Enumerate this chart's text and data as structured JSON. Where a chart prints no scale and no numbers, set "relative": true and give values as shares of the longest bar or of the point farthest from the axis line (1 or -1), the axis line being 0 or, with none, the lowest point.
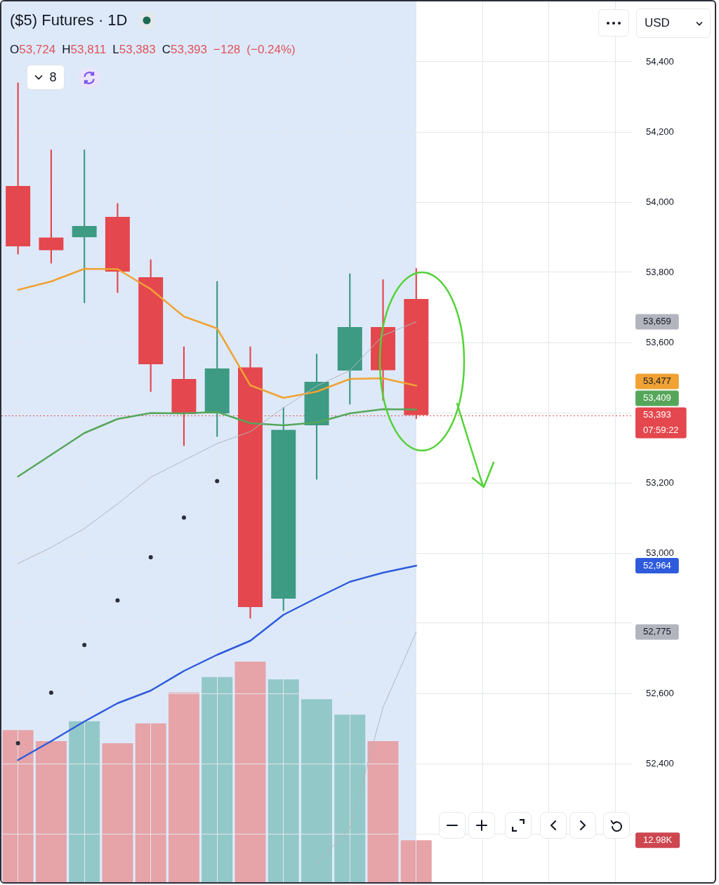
{
  "chart_data": [
    {
      "type": "candlestick",
      "title": "($5) Futures · 1D",
      "subtitle": "O53,724 H53,811 L53,383 C53,393 −128 (−0.24%)",
      "categories": [
        null,
        null,
        null,
        null,
        null,
        null,
        null,
        null,
        null,
        null,
        null,
        null,
        null,
        null,
        null,
        null,
        null,
        null,
        null
      ],
      "ohlc": [
        [
          54046,
          54340,
          53852,
          53874
        ],
        [
          53899,
          54149,
          53826,
          53863
        ],
        [
          53900,
          54149,
          53713,
          53932
        ],
        [
          53958,
          53996,
          53742,
          53802
        ],
        [
          53786,
          53836,
          53460,
          53538
        ],
        [
          53496,
          53588,
          53306,
          53396
        ],
        [
          53398,
          53774,
          53332,
          53526
        ],
        [
          53529,
          53588,
          52814,
          52846
        ],
        [
          52870,
          53415,
          52836,
          53351
        ],
        [
          53364,
          53567,
          53210,
          53488
        ],
        [
          53520,
          53796,
          53424,
          53644
        ],
        [
          53644,
          53779,
          53435,
          53521
        ],
        [
          53724,
          53811,
          53383,
          53393
        ],
        null,
        null,
        null,
        null,
        null,
        null
      ],
      "colors": [
        "#e4474d",
        "#e4474d",
        "#3d9a83",
        "#e4474d",
        "#e4474d",
        "#e4474d",
        "#3d9a83",
        "#e4474d",
        "#3d9a83",
        "#3d9a83",
        "#3d9a83",
        "#e4474d",
        "#e4474d",
        null,
        null,
        null,
        null,
        null,
        null
      ],
      "series": [
        {
          "type": "line",
          "color": "#f0a234",
          "values": [
            53750,
            53774,
            53810,
            53809,
            53752,
            53674,
            53640,
            53478,
            53442,
            53460,
            53496,
            53498,
            53477,
            null,
            null,
            null,
            null,
            null,
            null
          ]
        },
        {
          "type": "line",
          "color": "#56a65a",
          "values": [
            53218,
            53280,
            53342,
            53382,
            53399,
            53398,
            53402,
            53370,
            53364,
            53372,
            53398,
            53410,
            53409,
            null,
            null,
            null,
            null,
            null,
            null
          ]
        },
        {
          "type": "line",
          "color": "#b2b5be",
          "values": [
            52970,
            53016,
            53070,
            53140,
            53216,
            53264,
            53312,
            53346,
            53414,
            53476,
            53520,
            53620,
            53659,
            null,
            null,
            null,
            null,
            null,
            null
          ]
        },
        {
          "type": "line",
          "color": "#b2b5be",
          "values": [
            null,
            null,
            null,
            null,
            null,
            null,
            null,
            null,
            null,
            52116,
            52216,
            52560,
            52775,
            null,
            null,
            null,
            null,
            null,
            null
          ]
        },
        {
          "type": "line",
          "color": "#2e5bdc",
          "values": [
            52410,
            52464,
            52520,
            52572,
            52608,
            52664,
            52710,
            52750,
            52824,
            52872,
            52918,
            52944,
            52964,
            null,
            null,
            null,
            null,
            null,
            null
          ]
        },
        {
          "type": "scatter",
          "color": "#2a2e39",
          "marker": "circle",
          "values": [
            52458,
            52602,
            52738,
            52865,
            52988,
            53101,
            53205,
            null,
            null,
            null,
            null,
            null,
            null,
            null,
            null,
            null,
            null,
            null,
            null
          ]
        }
      ],
      "ylim": [
        52062,
        54572
      ],
      "yticks": [
        {
          "value": 52200,
          "label": null
        },
        {
          "value": 52400,
          "label": "52,400"
        },
        {
          "value": 52600,
          "label": "52,600"
        },
        {
          "value": 52800,
          "label": null
        },
        {
          "value": 53000,
          "label": "53,000"
        },
        {
          "value": 53200,
          "label": "53,200"
        },
        {
          "value": 53400,
          "label": null
        },
        {
          "value": 53600,
          "label": "53,600"
        },
        {
          "value": 53800,
          "label": "53,800"
        },
        {
          "value": 54000,
          "label": "54,000"
        },
        {
          "value": 54200,
          "label": "54,200"
        },
        {
          "value": 54400,
          "label": "54,400"
        }
      ],
      "ref_lines": [
        {
          "axis": "y",
          "value": 53393,
          "label": "53,393",
          "color": "#e4474d",
          "line_style": "dotted"
        }
      ],
      "annotations": [
        "USD",
        "8",
        "07:59:22",
        "53,477",
        "53,409",
        "53,659",
        "52,775",
        "52,964"
      ],
      "grid": true,
      "tick_labels": "y"
    },
    {
      "type": "bar",
      "relative": true,
      "categories": [
        null,
        null,
        null,
        null,
        null,
        null,
        null,
        null,
        null,
        null,
        null,
        null,
        null,
        null,
        null,
        null,
        null,
        null,
        null
      ],
      "values": [
        0.69,
        0.64,
        0.73,
        0.63,
        0.72,
        0.86,
        0.93,
        1,
        0.92,
        0.83,
        0.76,
        0.64,
        0.19,
        null,
        null,
        null,
        null,
        null,
        null
      ],
      "colors": [
        "#e6a3a8",
        "#e6a3a8",
        "#93c8c8",
        "#e6a3a8",
        "#e6a3a8",
        "#e6a3a8",
        "#93c8c8",
        "#e6a3a8",
        "#93c8c8",
        "#93c8c8",
        "#93c8c8",
        "#e6a3a8",
        "#e6a3a8",
        null,
        null,
        null,
        null,
        null,
        null
      ],
      "annotations": [
        "12.98K"
      ],
      "tick_labels": false
    }
  ]
}
